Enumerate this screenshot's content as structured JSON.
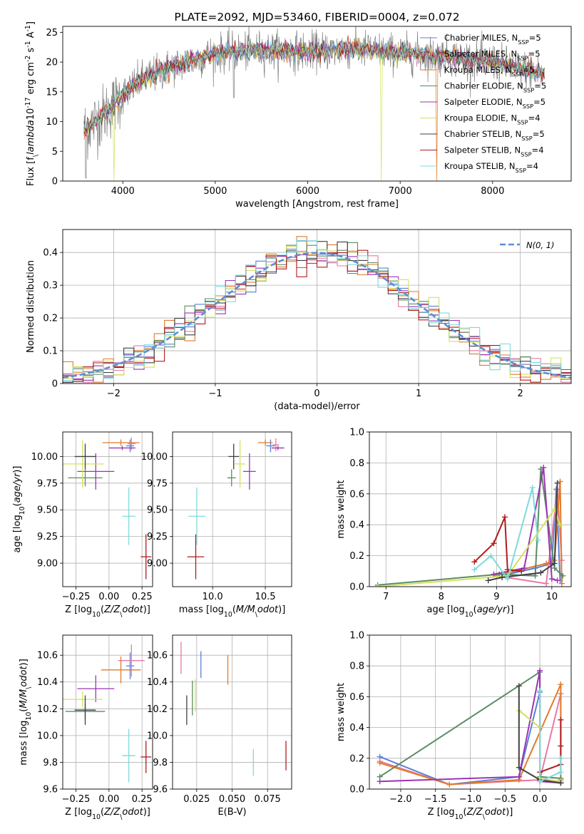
{
  "chart_data": [
    {
      "id": "spectrum",
      "type": "line",
      "title": "PLATE=2092, MJD=53460, FIBERID=0004, z=0.072",
      "xlabel": "wavelength [Angstrom, rest frame]",
      "ylabel": "Flux [f$_\\lambda$10$^{-17}$ erg cm$^{-2}$ s$^{-1}$ A$^{-1}$]",
      "xlim": [
        3350,
        8850
      ],
      "ylim": [
        0,
        26
      ],
      "xticks": [
        4000,
        5000,
        6000,
        7000,
        8000
      ],
      "yticks": [
        0,
        5,
        10,
        15,
        20,
        25
      ],
      "grid": false,
      "legend_position": "top-right",
      "continuum": [
        [
          3580,
          8.5
        ],
        [
          3700,
          10
        ],
        [
          3850,
          12
        ],
        [
          4000,
          14.5
        ],
        [
          4200,
          17
        ],
        [
          4500,
          19
        ],
        [
          5000,
          21.5
        ],
        [
          5500,
          22
        ],
        [
          6000,
          21.8
        ],
        [
          6500,
          22.2
        ],
        [
          7000,
          21.5
        ],
        [
          7500,
          21
        ],
        [
          8000,
          20
        ],
        [
          8400,
          18.5
        ],
        [
          8550,
          18
        ]
      ],
      "series": [
        {
          "name": "Chabrier MILES, N$_{SSP}$=5",
          "color": "#5b7fd6"
        },
        {
          "name": "Salpeter MILES, N$_{SSP}$=5",
          "color": "#e879a8"
        },
        {
          "name": "Kroupa MILES, N$_{SSP}$=5",
          "color": "#e07b2a"
        },
        {
          "name": "Chabrier ELODIE, N$_{SSP}$=5",
          "color": "#5b8c62"
        },
        {
          "name": "Salpeter ELODIE, N$_{SSP}$=5",
          "color": "#9b35b3"
        },
        {
          "name": "Kroupa ELODIE, N$_{SSP}$=4",
          "color": "#d4e25a"
        },
        {
          "name": "Chabrier STELIB, N$_{SSP}$=5",
          "color": "#404040"
        },
        {
          "name": "Salpeter STELIB, N$_{SSP}$=4",
          "color": "#b01c1c"
        },
        {
          "name": "Kroupa STELIB, N$_{SSP}$=4",
          "color": "#7fdadb"
        }
      ]
    },
    {
      "id": "residuals",
      "type": "bar",
      "xlabel": "(data-model)/error",
      "ylabel": "Normed distribution",
      "xlim": [
        -2.5,
        2.5
      ],
      "ylim": [
        0,
        0.47
      ],
      "xticks": [
        -2,
        -1,
        0,
        1,
        2
      ],
      "yticks": [
        0.0,
        0.1,
        0.2,
        0.3,
        0.4
      ],
      "grid": true,
      "bin_width": 0.1,
      "normal_label": "$\\mathcal{N}(0, 1)$",
      "normal_color": "#5b8ed6",
      "legend_position": "top-right"
    },
    {
      "id": "age-vs-Z",
      "type": "scatter",
      "xlabel": "Z [log$_{10}$($Z/Z_\\odot$)]",
      "ylabel": "age  [log$_{10}$($age/yr$)]",
      "xlim": [
        -0.35,
        0.33
      ],
      "ylim": [
        8.78,
        10.23
      ],
      "xticks": [
        -0.25,
        0.0,
        0.25
      ],
      "xticklabels": [
        "−0.25",
        "0.00",
        "0.25"
      ],
      "yticks": [
        9.0,
        9.25,
        9.5,
        9.75,
        10.0
      ],
      "yticklabels": [
        "9.00",
        "9.25",
        "9.50",
        "9.75",
        "10.00"
      ],
      "grid": true,
      "points": [
        {
          "color": "#5b7fd6",
          "x": 0.16,
          "xerr": 0.03,
          "y": 10.1,
          "yerr": 0.06
        },
        {
          "color": "#e879a8",
          "x": 0.17,
          "xerr": 0.03,
          "y": 10.12,
          "yerr": 0.06
        },
        {
          "color": "#e07b2a",
          "x": 0.09,
          "xerr": 0.14,
          "y": 10.13,
          "yerr": 0.03
        },
        {
          "color": "#5b8c62",
          "x": -0.18,
          "xerr": 0.13,
          "y": 9.8,
          "yerr": 0.08
        },
        {
          "color": "#9b35b3",
          "x": -0.1,
          "xerr": 0.14,
          "y": 9.86,
          "yerr": 0.17
        },
        {
          "color": "#d4e25a",
          "x": -0.2,
          "xerr": 0.16,
          "y": 9.93,
          "yerr": 0.22
        },
        {
          "color": "#404040",
          "x": -0.18,
          "xerr": 0.08,
          "y": 10.0,
          "yerr": 0.12
        },
        {
          "color": "#b01c1c",
          "x": 0.28,
          "xerr": 0.04,
          "y": 9.06,
          "yerr": 0.21
        },
        {
          "color": "#7fdadb",
          "x": 0.15,
          "xerr": 0.05,
          "y": 9.44,
          "yerr": 0.27
        },
        {
          "color": "#9b35b3",
          "x": 0.1,
          "xerr": 0.1,
          "y": 10.08,
          "yerr": 0.02
        }
      ]
    },
    {
      "id": "age-vs-mass",
      "type": "scatter",
      "xlabel": "mass [log$_{10}$($M/M_\\odot$)]",
      "xlim": [
        9.62,
        10.75
      ],
      "ylim": [
        8.78,
        10.23
      ],
      "xticks": [
        10.0,
        10.5
      ],
      "xticklabels": [
        "10.0",
        "10.5"
      ],
      "yticks": [
        9.0,
        9.25,
        9.5,
        9.75,
        10.0
      ],
      "yticklabels": [
        "9.00",
        "9.25",
        "9.50",
        "9.75",
        "10.00"
      ],
      "grid": true,
      "points": [
        {
          "color": "#5b7fd6",
          "x": 10.55,
          "xerr": 0.04,
          "y": 10.1,
          "yerr": 0.06
        },
        {
          "color": "#e879a8",
          "x": 10.6,
          "xerr": 0.03,
          "y": 10.11,
          "yerr": 0.06
        },
        {
          "color": "#e07b2a",
          "x": 10.5,
          "xerr": 0.07,
          "y": 10.13,
          "yerr": 0.03
        },
        {
          "color": "#5b8c62",
          "x": 10.18,
          "xerr": 0.04,
          "y": 9.8,
          "yerr": 0.08
        },
        {
          "color": "#9b35b3",
          "x": 10.35,
          "xerr": 0.06,
          "y": 9.86,
          "yerr": 0.17
        },
        {
          "color": "#d4e25a",
          "x": 10.26,
          "xerr": 0.05,
          "y": 9.93,
          "yerr": 0.22
        },
        {
          "color": "#404040",
          "x": 10.2,
          "xerr": 0.05,
          "y": 10.0,
          "yerr": 0.12
        },
        {
          "color": "#b01c1c",
          "x": 9.84,
          "xerr": 0.08,
          "y": 9.06,
          "yerr": 0.21
        },
        {
          "color": "#7fdadb",
          "x": 9.85,
          "xerr": 0.08,
          "y": 9.44,
          "yerr": 0.27
        },
        {
          "color": "#9b35b3",
          "x": 10.62,
          "xerr": 0.06,
          "y": 10.08,
          "yerr": 0.02
        }
      ]
    },
    {
      "id": "weight-vs-age",
      "type": "line",
      "xlabel": "age  [log$_{10}$($age/yr$)]",
      "ylabel": "mass weight",
      "xlim": [
        6.7,
        10.35
      ],
      "ylim": [
        0,
        1
      ],
      "xticks": [
        7,
        8,
        9,
        10
      ],
      "yticks": [
        0.0,
        0.2,
        0.4,
        0.6,
        0.8,
        1.0
      ],
      "yticklabels": [
        "0.0",
        "0.2",
        "0.4",
        "0.6",
        "0.8",
        "1.0"
      ],
      "grid": true,
      "series": [
        {
          "color": "#5b7fd6",
          "points": [
            [
              9.2,
              0.08
            ],
            [
              9.7,
              0.12
            ],
            [
              10.0,
              0.15
            ],
            [
              10.08,
              0.63
            ],
            [
              10.15,
              0.04
            ]
          ]
        },
        {
          "color": "#e879a8",
          "points": [
            [
              9.0,
              0.07
            ],
            [
              9.9,
              0.02
            ],
            [
              10.1,
              0.62
            ],
            [
              10.18,
              0.17
            ]
          ]
        },
        {
          "color": "#e07b2a",
          "points": [
            [
              9.1,
              0.08
            ],
            [
              9.9,
              0.15
            ],
            [
              10.05,
              0.17
            ],
            [
              10.15,
              0.68
            ],
            [
              10.18,
              0.02
            ]
          ]
        },
        {
          "color": "#5b8c62",
          "points": [
            [
              6.85,
              0.01
            ],
            [
              9.05,
              0.08
            ],
            [
              9.7,
              0.07
            ],
            [
              9.8,
              0.76
            ],
            [
              10.05,
              0.12
            ],
            [
              10.2,
              0.07
            ]
          ]
        },
        {
          "color": "#9b35b3",
          "points": [
            [
              8.95,
              0.08
            ],
            [
              9.5,
              0.12
            ],
            [
              9.85,
              0.77
            ],
            [
              10.0,
              0.05
            ],
            [
              10.1,
              0.04
            ]
          ]
        },
        {
          "color": "#d4e25a",
          "points": [
            [
              6.85,
              0.0
            ],
            [
              9.2,
              0.07
            ],
            [
              10.05,
              0.5
            ],
            [
              10.15,
              0.4
            ]
          ]
        },
        {
          "color": "#404040",
          "points": [
            [
              8.85,
              0.04
            ],
            [
              9.1,
              0.06
            ],
            [
              9.8,
              0.09
            ],
            [
              10.05,
              0.15
            ],
            [
              10.1,
              0.67
            ]
          ]
        },
        {
          "color": "#b01c1c",
          "points": [
            [
              8.6,
              0.16
            ],
            [
              8.95,
              0.28
            ],
            [
              9.15,
              0.45
            ],
            [
              9.2,
              0.11
            ],
            [
              9.45,
              0.1
            ]
          ]
        },
        {
          "color": "#7fdadb",
          "points": [
            [
              8.6,
              0.11
            ],
            [
              8.9,
              0.2
            ],
            [
              9.2,
              0.05
            ],
            [
              9.65,
              0.64
            ],
            [
              9.75,
              0.3
            ]
          ]
        }
      ]
    },
    {
      "id": "mass-vs-Z",
      "type": "scatter",
      "xlabel": "Z [log$_{10}$($Z/Z_\\odot$)]",
      "ylabel": "mass [log$_{10}$($M/M_\\odot$)]",
      "xlim": [
        -0.35,
        0.33
      ],
      "ylim": [
        9.6,
        10.75
      ],
      "xticks": [
        -0.25,
        0.0,
        0.25
      ],
      "xticklabels": [
        "−0.25",
        "0.00",
        "0.25"
      ],
      "yticks": [
        9.6,
        9.8,
        10.0,
        10.2,
        10.4,
        10.6
      ],
      "yticklabels": [
        "9.6",
        "9.8",
        "10.0",
        "10.2",
        "10.4",
        "10.6"
      ],
      "grid": true,
      "points": [
        {
          "color": "#5b7fd6",
          "x": 0.16,
          "xerr": 0.03,
          "y": 10.52,
          "yerr": 0.1
        },
        {
          "color": "#e879a8",
          "x": 0.17,
          "xerr": 0.1,
          "y": 10.56,
          "yerr": 0.12
        },
        {
          "color": "#e07b2a",
          "x": 0.09,
          "xerr": 0.15,
          "y": 10.49,
          "yerr": 0.1
        },
        {
          "color": "#5b8c62",
          "x": -0.18,
          "xerr": 0.15,
          "y": 10.18,
          "yerr": 0.06
        },
        {
          "color": "#9b35b3",
          "x": -0.1,
          "xerr": 0.14,
          "y": 10.35,
          "yerr": 0.1
        },
        {
          "color": "#d4e25a",
          "x": -0.2,
          "xerr": 0.15,
          "y": 10.27,
          "yerr": 0.06
        },
        {
          "color": "#404040",
          "x": -0.18,
          "xerr": 0.08,
          "y": 10.19,
          "yerr": 0.11
        },
        {
          "color": "#b01c1c",
          "x": 0.28,
          "xerr": 0.04,
          "y": 9.84,
          "yerr": 0.12
        },
        {
          "color": "#7fdadb",
          "x": 0.15,
          "xerr": 0.05,
          "y": 9.85,
          "yerr": 0.2
        }
      ]
    },
    {
      "id": "mass-vs-EBV",
      "type": "scatter",
      "xlabel": "E(B-V)",
      "xlim": [
        0.008,
        0.092
      ],
      "ylim": [
        9.6,
        10.75
      ],
      "xticks": [
        0.025,
        0.05,
        0.075
      ],
      "xticklabels": [
        "0.025",
        "0.050",
        "0.075"
      ],
      "yticks": [
        9.6,
        9.8,
        10.0,
        10.2,
        10.4,
        10.6
      ],
      "yticklabels": [
        "9.6",
        "9.8",
        "10.0",
        "10.2",
        "10.4",
        "10.6"
      ],
      "grid": true,
      "points": [
        {
          "color": "#5b7fd6",
          "x": 0.028,
          "xerr": 0,
          "y": 10.53,
          "yerr": 0.1
        },
        {
          "color": "#e879a8",
          "x": 0.014,
          "xerr": 0,
          "y": 10.58,
          "yerr": 0.12
        },
        {
          "color": "#e07b2a",
          "x": 0.047,
          "xerr": 0,
          "y": 10.49,
          "yerr": 0.11
        },
        {
          "color": "#5b8c62",
          "x": 0.022,
          "xerr": 0,
          "y": 10.28,
          "yerr": 0.13
        },
        {
          "color": "#d4e25a",
          "x": 0.024,
          "xerr": 0,
          "y": 10.3,
          "yerr": 0.12
        },
        {
          "color": "#404040",
          "x": 0.018,
          "xerr": 0,
          "y": 10.19,
          "yerr": 0.11
        },
        {
          "color": "#b01c1c",
          "x": 0.088,
          "xerr": 0,
          "y": 9.85,
          "yerr": 0.11
        },
        {
          "color": "#7fdadb",
          "x": 0.065,
          "xerr": 0,
          "y": 9.8,
          "yerr": 0.1
        }
      ]
    },
    {
      "id": "weight-vs-Z",
      "type": "line",
      "xlabel": "Z [log$_{10}$($Z/Z_\\odot$)]",
      "ylabel": "mass weight",
      "xlim": [
        -2.45,
        0.45
      ],
      "ylim": [
        0,
        1
      ],
      "xticks": [
        -2.0,
        -1.5,
        -1.0,
        -0.5,
        0.0
      ],
      "xticklabels": [
        "−2.0",
        "−1.5",
        "−1.0",
        "−0.5",
        "0.0"
      ],
      "yticks": [
        0.0,
        0.2,
        0.4,
        0.6,
        0.8,
        1.0
      ],
      "yticklabels": [
        "0.0",
        "0.2",
        "0.4",
        "0.6",
        "0.8",
        "1.0"
      ],
      "grid": true,
      "series": [
        {
          "color": "#5b7fd6",
          "points": [
            [
              -2.3,
              0.21
            ],
            [
              -1.3,
              0.03
            ],
            [
              -0.3,
              0.08
            ],
            [
              0.0,
              0.63
            ],
            [
              0.0,
              0.06
            ],
            [
              0.3,
              0.04
            ]
          ]
        },
        {
          "color": "#e879a8",
          "points": [
            [
              -2.3,
              0.18
            ],
            [
              -1.3,
              0.03
            ],
            [
              0.0,
              0.06
            ],
            [
              0.3,
              0.62
            ],
            [
              0.3,
              0.06
            ]
          ]
        },
        {
          "color": "#e07b2a",
          "points": [
            [
              -2.3,
              0.17
            ],
            [
              -1.3,
              0.03
            ],
            [
              -0.3,
              0.06
            ],
            [
              0.3,
              0.68
            ],
            [
              0.3,
              0.04
            ]
          ]
        },
        {
          "color": "#5b8c62",
          "points": [
            [
              -2.3,
              0.08
            ],
            [
              0.0,
              0.76
            ],
            [
              0.0,
              0.08
            ],
            [
              0.3,
              0.07
            ]
          ]
        },
        {
          "color": "#9b35b3",
          "points": [
            [
              -2.3,
              0.05
            ],
            [
              -0.3,
              0.08
            ],
            [
              0.0,
              0.77
            ],
            [
              0.0,
              0.05
            ],
            [
              0.3,
              0.04
            ]
          ]
        },
        {
          "color": "#d4e25a",
          "points": [
            [
              -0.3,
              0.51
            ],
            [
              0.0,
              0.4
            ],
            [
              0.0,
              0.07
            ],
            [
              0.3,
              0.05
            ]
          ]
        },
        {
          "color": "#404040",
          "points": [
            [
              -0.3,
              0.67
            ],
            [
              -0.3,
              0.14
            ],
            [
              0.0,
              0.06
            ],
            [
              0.3,
              0.04
            ]
          ]
        },
        {
          "color": "#b01c1c",
          "points": [
            [
              0.0,
              0.11
            ],
            [
              0.3,
              0.16
            ],
            [
              0.3,
              0.28
            ],
            [
              0.3,
              0.45
            ]
          ]
        },
        {
          "color": "#7fdadb",
          "points": [
            [
              0.0,
              0.64
            ],
            [
              0.0,
              0.05
            ],
            [
              0.3,
              0.11
            ],
            [
              0.3,
              0.2
            ]
          ]
        }
      ]
    }
  ]
}
